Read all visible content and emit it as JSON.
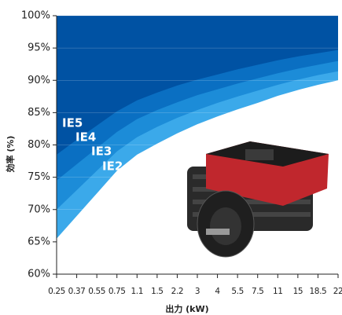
{
  "chart_data": {
    "type": "area",
    "x_label": "出力 (kW)",
    "y_label": "効率 (%)",
    "categories": [
      "0.25",
      "0.37",
      "0.55",
      "0.75",
      "1.1",
      "1.5",
      "2.2",
      "3",
      "4",
      "5.5",
      "7.5",
      "11",
      "15",
      "18.5",
      "22"
    ],
    "series": [
      {
        "name": "IE2",
        "color": "#3ba9ea",
        "values": [
          65.5,
          69,
          72.5,
          76,
          78.5,
          80.2,
          81.8,
          83.2,
          84.4,
          85.5,
          86.5,
          87.6,
          88.5,
          89.3,
          90
        ]
      },
      {
        "name": "IE3",
        "color": "#1c8cd8",
        "values": [
          70,
          73,
          76,
          79,
          81.2,
          82.8,
          84.2,
          85.4,
          86.5,
          87.5,
          88.4,
          89.3,
          90.1,
          90.8,
          91.4
        ]
      },
      {
        "name": "IE4",
        "color": "#0a6fc2",
        "values": [
          74.5,
          77,
          79.5,
          82,
          84,
          85.4,
          86.6,
          87.7,
          88.6,
          89.5,
          90.3,
          91.1,
          91.8,
          92.4,
          93
        ]
      },
      {
        "name": "IE5",
        "color": "#0052a3",
        "values": [
          78.5,
          80.8,
          83,
          85.2,
          86.9,
          88.1,
          89.2,
          90.1,
          90.9,
          91.7,
          92.4,
          93.1,
          93.7,
          94.2,
          94.7
        ]
      }
    ],
    "ylim": [
      60,
      100
    ],
    "yticks": [
      {
        "value": 60,
        "label": "60%"
      },
      {
        "value": 65,
        "label": "65%"
      },
      {
        "value": 70,
        "label": "70%"
      },
      {
        "value": 75,
        "label": "75%"
      },
      {
        "value": 80,
        "label": "80%"
      },
      {
        "value": 85,
        "label": "85%"
      },
      {
        "value": 90,
        "label": "90%"
      },
      {
        "value": 95,
        "label": "95%"
      },
      {
        "value": 100,
        "label": "100%"
      }
    ],
    "grid": true
  }
}
